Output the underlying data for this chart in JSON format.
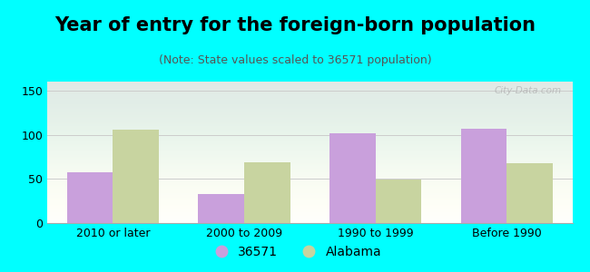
{
  "title": "Year of entry for the foreign-born population",
  "subtitle": "(Note: State values scaled to 36571 population)",
  "categories": [
    "2010 or later",
    "2000 to 2009",
    "1990 to 1999",
    "Before 1990"
  ],
  "series": [
    {
      "label": "36571",
      "values": [
        57,
        33,
        102,
        107
      ],
      "color": "#c9a0dc"
    },
    {
      "label": "Alabama",
      "values": [
        106,
        69,
        49,
        68
      ],
      "color": "#c8d4a0"
    }
  ],
  "ylim": [
    0,
    160
  ],
  "yticks": [
    0,
    50,
    100,
    150
  ],
  "background_color": "#00ffff",
  "plot_bg_color": "#ffffff",
  "bar_width": 0.35,
  "title_fontsize": 15,
  "subtitle_fontsize": 9,
  "tick_fontsize": 9,
  "legend_fontsize": 10,
  "watermark": "City-Data.com"
}
